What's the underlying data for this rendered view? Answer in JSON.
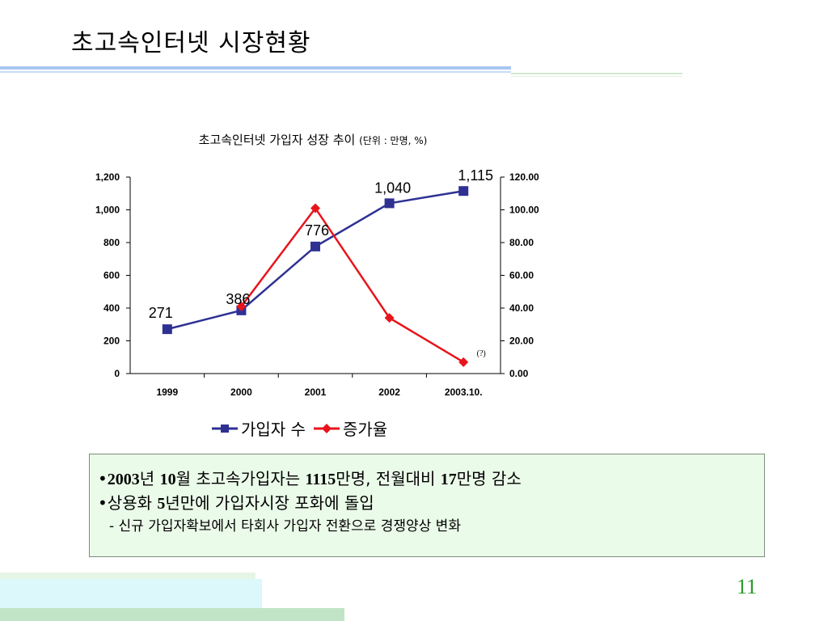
{
  "slide": {
    "title": "초고속인터넷 시장현황",
    "page_number": "11"
  },
  "chart_data": {
    "type": "line",
    "title": "초고속인터넷 가입자 성장 추이",
    "unit_note": "(단위 : 만명, %)",
    "categories": [
      "1999",
      "2000",
      "2001",
      "2002",
      "2003.10."
    ],
    "y_left": {
      "ticks": [
        "0",
        "200",
        "400",
        "600",
        "800",
        "1,000",
        "1,200"
      ],
      "ylim": [
        0,
        1200
      ]
    },
    "y_right": {
      "ticks": [
        "0.00",
        "20.00",
        "40.00",
        "60.00",
        "80.00",
        "100.00",
        "120.00"
      ],
      "ylim": [
        0,
        120
      ]
    },
    "series": [
      {
        "name": "가입자 수",
        "axis": "left",
        "color": "#2e3192",
        "marker": "square",
        "values": [
          271,
          386,
          776,
          1040,
          1115
        ],
        "labels": [
          "271",
          "386",
          "776",
          "1,040",
          "1,115"
        ]
      },
      {
        "name": "증가율",
        "axis": "right",
        "color": "#e8141b",
        "marker": "diamond",
        "values": [
          null,
          41,
          101,
          34,
          7
        ]
      }
    ],
    "annotation": "(?)",
    "grid": false,
    "legend_position": "bottom"
  },
  "notes": {
    "line1": {
      "bullet": "•",
      "year": "2003",
      "t1": "년 ",
      "month": "10",
      "t2": "월 초고속가입자는 ",
      "count": "1115",
      "t3": "만명, 전월대비 ",
      "diff": "17",
      "t4": "만명 감소"
    },
    "line2": {
      "bullet": "•",
      "t1": "상용화 ",
      "years": "5",
      "t2": "년만에 가입자시장 포화에 돌입"
    },
    "line3": "- 신규 가입자확보에서 타회사 가입자 전환으로 경쟁양상 변화"
  }
}
